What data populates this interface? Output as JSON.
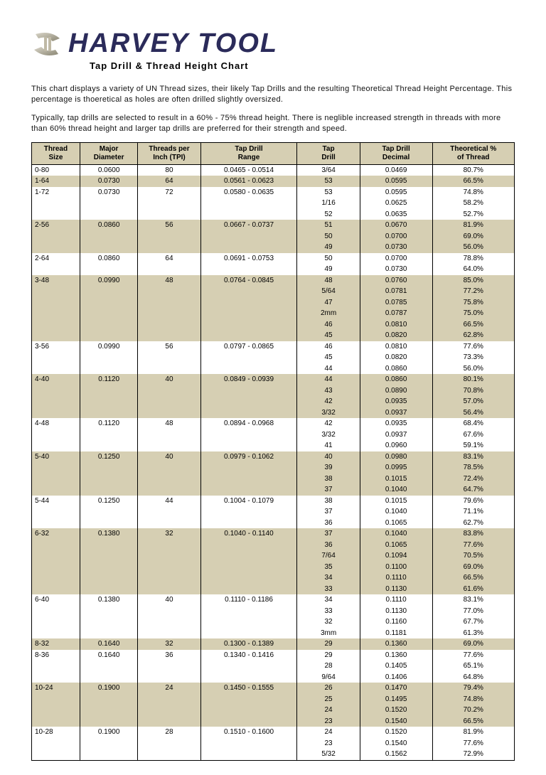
{
  "brand": "HARVEY TOOL",
  "subtitle": "Tap Drill & Thread Height Chart",
  "intro1": "This chart displays a variety of UN Thread sizes, their likely Tap Drills and the resulting Theoretical Thread Height Percentage.  This percentage is thoeretical as holes are often drilled slightly oversized.",
  "intro2": "Typically, tap drills are selected to result in a 60% - 75% thread height.  There is neglible increased strength in threads with more than 60% thread height and larger tap drills are preferred for their strength and speed.",
  "colors": {
    "band": "#d6cfb3",
    "border": "#000000",
    "brand_text": "#2b2b5a",
    "page_bg": "#ffffff"
  },
  "columns": [
    {
      "l1": "Thread",
      "l2": "Size"
    },
    {
      "l1": "Major",
      "l2": "Diameter"
    },
    {
      "l1": "Threads per",
      "l2": "Inch (TPI)"
    },
    {
      "l1": "Tap Drill",
      "l2": "Range"
    },
    {
      "l1": "Tap",
      "l2": "Drill"
    },
    {
      "l1": "Tap Drill",
      "l2": "Decimal"
    },
    {
      "l1": "Theoretical %",
      "l2": "of Thread"
    }
  ],
  "rows": [
    {
      "band": false,
      "c": [
        "0-80",
        "0.0600",
        "80",
        "0.0465 - 0.0514",
        "3/64",
        "0.0469",
        "80.7%"
      ]
    },
    {
      "band": true,
      "c": [
        "1-64",
        "0.0730",
        "64",
        "0.0561 - 0.0623",
        "53",
        "0.0595",
        "66.5%"
      ]
    },
    {
      "band": false,
      "c": [
        "1-72",
        "0.0730",
        "72",
        "0.0580 - 0.0635",
        "53",
        "0.0595",
        "74.8%"
      ]
    },
    {
      "band": false,
      "c": [
        "",
        "",
        "",
        "",
        "1/16",
        "0.0625",
        "58.2%"
      ]
    },
    {
      "band": false,
      "c": [
        "",
        "",
        "",
        "",
        "52",
        "0.0635",
        "52.7%"
      ]
    },
    {
      "band": true,
      "c": [
        "2-56",
        "0.0860",
        "56",
        "0.0667 - 0.0737",
        "51",
        "0.0670",
        "81.9%"
      ]
    },
    {
      "band": true,
      "c": [
        "",
        "",
        "",
        "",
        "50",
        "0.0700",
        "69.0%"
      ]
    },
    {
      "band": true,
      "c": [
        "",
        "",
        "",
        "",
        "49",
        "0.0730",
        "56.0%"
      ]
    },
    {
      "band": false,
      "c": [
        "2-64",
        "0.0860",
        "64",
        "0.0691 - 0.0753",
        "50",
        "0.0700",
        "78.8%"
      ]
    },
    {
      "band": false,
      "c": [
        "",
        "",
        "",
        "",
        "49",
        "0.0730",
        "64.0%"
      ]
    },
    {
      "band": true,
      "c": [
        "3-48",
        "0.0990",
        "48",
        "0.0764 - 0.0845",
        "48",
        "0.0760",
        "85.0%"
      ]
    },
    {
      "band": true,
      "c": [
        "",
        "",
        "",
        "",
        "5/64",
        "0.0781",
        "77.2%"
      ]
    },
    {
      "band": true,
      "c": [
        "",
        "",
        "",
        "",
        "47",
        "0.0785",
        "75.8%"
      ]
    },
    {
      "band": true,
      "c": [
        "",
        "",
        "",
        "",
        "2mm",
        "0.0787",
        "75.0%"
      ]
    },
    {
      "band": true,
      "c": [
        "",
        "",
        "",
        "",
        "46",
        "0.0810",
        "66.5%"
      ]
    },
    {
      "band": true,
      "c": [
        "",
        "",
        "",
        "",
        "45",
        "0.0820",
        "62.8%"
      ]
    },
    {
      "band": false,
      "c": [
        "3-56",
        "0.0990",
        "56",
        "0.0797 - 0.0865",
        "46",
        "0.0810",
        "77.6%"
      ]
    },
    {
      "band": false,
      "c": [
        "",
        "",
        "",
        "",
        "45",
        "0.0820",
        "73.3%"
      ]
    },
    {
      "band": false,
      "c": [
        "",
        "",
        "",
        "",
        "44",
        "0.0860",
        "56.0%"
      ]
    },
    {
      "band": true,
      "c": [
        "4-40",
        "0.1120",
        "40",
        "0.0849 - 0.0939",
        "44",
        "0.0860",
        "80.1%"
      ]
    },
    {
      "band": true,
      "c": [
        "",
        "",
        "",
        "",
        "43",
        "0.0890",
        "70.8%"
      ]
    },
    {
      "band": true,
      "c": [
        "",
        "",
        "",
        "",
        "42",
        "0.0935",
        "57.0%"
      ]
    },
    {
      "band": true,
      "c": [
        "",
        "",
        "",
        "",
        "3/32",
        "0.0937",
        "56.4%"
      ]
    },
    {
      "band": false,
      "c": [
        "4-48",
        "0.1120",
        "48",
        "0.0894 - 0.0968",
        "42",
        "0.0935",
        "68.4%"
      ]
    },
    {
      "band": false,
      "c": [
        "",
        "",
        "",
        "",
        "3/32",
        "0.0937",
        "67.6%"
      ]
    },
    {
      "band": false,
      "c": [
        "",
        "",
        "",
        "",
        "41",
        "0.0960",
        "59.1%"
      ]
    },
    {
      "band": true,
      "c": [
        "5-40",
        "0.1250",
        "40",
        "0.0979 - 0.1062",
        "40",
        "0.0980",
        "83.1%"
      ]
    },
    {
      "band": true,
      "c": [
        "",
        "",
        "",
        "",
        "39",
        "0.0995",
        "78.5%"
      ]
    },
    {
      "band": true,
      "c": [
        "",
        "",
        "",
        "",
        "38",
        "0.1015",
        "72.4%"
      ]
    },
    {
      "band": true,
      "c": [
        "",
        "",
        "",
        "",
        "37",
        "0.1040",
        "64.7%"
      ]
    },
    {
      "band": false,
      "c": [
        "5-44",
        "0.1250",
        "44",
        "0.1004 - 0.1079",
        "38",
        "0.1015",
        "79.6%"
      ]
    },
    {
      "band": false,
      "c": [
        "",
        "",
        "",
        "",
        "37",
        "0.1040",
        "71.1%"
      ]
    },
    {
      "band": false,
      "c": [
        "",
        "",
        "",
        "",
        "36",
        "0.1065",
        "62.7%"
      ]
    },
    {
      "band": true,
      "c": [
        "6-32",
        "0.1380",
        "32",
        "0.1040 - 0.1140",
        "37",
        "0.1040",
        "83.8%"
      ]
    },
    {
      "band": true,
      "c": [
        "",
        "",
        "",
        "",
        "36",
        "0.1065",
        "77.6%"
      ]
    },
    {
      "band": true,
      "c": [
        "",
        "",
        "",
        "",
        "7/64",
        "0.1094",
        "70.5%"
      ]
    },
    {
      "band": true,
      "c": [
        "",
        "",
        "",
        "",
        "35",
        "0.1100",
        "69.0%"
      ]
    },
    {
      "band": true,
      "c": [
        "",
        "",
        "",
        "",
        "34",
        "0.1110",
        "66.5%"
      ]
    },
    {
      "band": true,
      "c": [
        "",
        "",
        "",
        "",
        "33",
        "0.1130",
        "61.6%"
      ]
    },
    {
      "band": false,
      "c": [
        "6-40",
        "0.1380",
        "40",
        "0.1110 - 0.1186",
        "34",
        "0.1110",
        "83.1%"
      ]
    },
    {
      "band": false,
      "c": [
        "",
        "",
        "",
        "",
        "33",
        "0.1130",
        "77.0%"
      ]
    },
    {
      "band": false,
      "c": [
        "",
        "",
        "",
        "",
        "32",
        "0.1160",
        "67.7%"
      ]
    },
    {
      "band": false,
      "c": [
        "",
        "",
        "",
        "",
        "3mm",
        "0.1181",
        "61.3%"
      ]
    },
    {
      "band": true,
      "c": [
        "8-32",
        "0.1640",
        "32",
        "0.1300 - 0.1389",
        "29",
        "0.1360",
        "69.0%"
      ]
    },
    {
      "band": false,
      "c": [
        "8-36",
        "0.1640",
        "36",
        "0.1340 - 0.1416",
        "29",
        "0.1360",
        "77.6%"
      ]
    },
    {
      "band": false,
      "c": [
        "",
        "",
        "",
        "",
        "28",
        "0.1405",
        "65.1%"
      ]
    },
    {
      "band": false,
      "c": [
        "",
        "",
        "",
        "",
        "9/64",
        "0.1406",
        "64.8%"
      ]
    },
    {
      "band": true,
      "c": [
        "10-24",
        "0.1900",
        "24",
        "0.1450 - 0.1555",
        "26",
        "0.1470",
        "79.4%"
      ]
    },
    {
      "band": true,
      "c": [
        "",
        "",
        "",
        "",
        "25",
        "0.1495",
        "74.8%"
      ]
    },
    {
      "band": true,
      "c": [
        "",
        "",
        "",
        "",
        "24",
        "0.1520",
        "70.2%"
      ]
    },
    {
      "band": true,
      "c": [
        "",
        "",
        "",
        "",
        "23",
        "0.1540",
        "66.5%"
      ]
    },
    {
      "band": false,
      "c": [
        "10-28",
        "0.1900",
        "28",
        "0.1510 - 0.1600",
        "24",
        "0.1520",
        "81.9%"
      ]
    },
    {
      "band": false,
      "c": [
        "",
        "",
        "",
        "",
        "23",
        "0.1540",
        "77.6%"
      ]
    },
    {
      "band": false,
      "c": [
        "",
        "",
        "",
        "",
        "5/32",
        "0.1562",
        "72.9%"
      ]
    }
  ]
}
